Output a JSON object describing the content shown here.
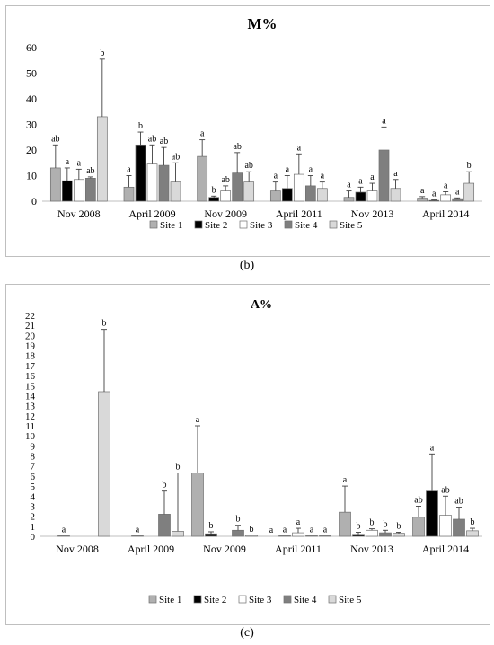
{
  "panel_labels": {
    "b": "(b)",
    "c": "(c)"
  },
  "colors": {
    "Site 1": "#b0b0b0",
    "Site 2": "#000000",
    "Site 3": "#ffffff",
    "Site 4": "#7f7f7f",
    "Site 5": "#d9d9d9"
  },
  "chart_data": [
    {
      "type": "bar",
      "title": "M%",
      "xlabel": "",
      "ylabel": "",
      "ylim": [
        0,
        60
      ],
      "yticks": [
        0,
        10,
        20,
        30,
        40,
        50,
        60
      ],
      "grid": false,
      "legend_position": "bottom",
      "categories": [
        "Nov 2008",
        "April 2009",
        "Nov 2009",
        "April 2011",
        "Nov 2013",
        "April 2014"
      ],
      "series": [
        {
          "name": "Site 1",
          "values": [
            13,
            5.5,
            17.5,
            4,
            1.5,
            1.2
          ],
          "errors": [
            9,
            4.5,
            6.5,
            3.5,
            2.5,
            0.6
          ],
          "labels": [
            "ab",
            "a",
            "a",
            "a",
            "a",
            "a"
          ]
        },
        {
          "name": "Site 2",
          "values": [
            8,
            22,
            1.5,
            5,
            3.5,
            0.3
          ],
          "errors": [
            5,
            5,
            0.5,
            5,
            2,
            0.2
          ],
          "labels": [
            "a",
            "b",
            "b",
            "a",
            "a",
            "a"
          ]
        },
        {
          "name": "Site 3",
          "values": [
            8.5,
            14.5,
            4,
            10.5,
            4,
            2.5
          ],
          "errors": [
            4,
            7.5,
            2,
            8,
            3,
            1.2
          ],
          "labels": [
            "a",
            "ab",
            "ab",
            "a",
            "a",
            "a"
          ]
        },
        {
          "name": "Site 4",
          "values": [
            9,
            14,
            11,
            6,
            20,
            1
          ],
          "errors": [
            0.5,
            7,
            8,
            4,
            9,
            0.3
          ],
          "labels": [
            "ab",
            "ab",
            "ab",
            "a",
            "a",
            "a"
          ]
        },
        {
          "name": "Site 5",
          "values": [
            33,
            7.5,
            7.5,
            5,
            5,
            7
          ],
          "errors": [
            22.5,
            7.5,
            4,
            2.5,
            3.5,
            4.5
          ],
          "labels": [
            "b",
            "ab",
            "ab",
            "a",
            "a",
            "b"
          ]
        }
      ]
    },
    {
      "type": "bar",
      "title": "A%",
      "xlabel": "",
      "ylabel": "",
      "ylim": [
        0,
        22
      ],
      "yticks": [
        0,
        1,
        2,
        3,
        4,
        5,
        6,
        7,
        8,
        9,
        10,
        11,
        12,
        13,
        14,
        15,
        16,
        17,
        18,
        19,
        20,
        21,
        22
      ],
      "grid": false,
      "legend_position": "bottom",
      "categories": [
        "Nov 2008",
        "April 2009",
        "Nov 2009",
        "April 2011",
        "Nov 2013",
        "April 2014"
      ],
      "series": [
        {
          "name": "Site 1",
          "values": [
            0,
            0,
            6.3,
            0,
            2.4,
            1.9
          ],
          "errors": [
            0,
            0,
            4.7,
            0,
            2.6,
            1.1
          ],
          "labels": [
            "",
            "",
            "a",
            "a",
            "a",
            "ab"
          ]
        },
        {
          "name": "Site 2",
          "values": [
            0.05,
            0.05,
            0.25,
            0.05,
            0.2,
            4.5
          ],
          "errors": [
            0,
            0,
            0.2,
            0,
            0.2,
            3.7
          ],
          "labels": [
            "a",
            "a",
            "b",
            "a",
            "b",
            "a"
          ]
        },
        {
          "name": "Site 3",
          "values": [
            0,
            0,
            0,
            0.35,
            0.6,
            2.1
          ],
          "errors": [
            0,
            0,
            0,
            0.45,
            0.15,
            1.9
          ],
          "labels": [
            "",
            "",
            "",
            "a",
            "b",
            "ab"
          ]
        },
        {
          "name": "Site 4",
          "values": [
            0,
            2.2,
            0.6,
            0.05,
            0.35,
            1.7
          ],
          "errors": [
            0,
            2.3,
            0.5,
            0,
            0.25,
            1.2
          ],
          "labels": [
            "",
            "b",
            "b",
            "a",
            "b",
            "ab"
          ]
        },
        {
          "name": "Site 5",
          "values": [
            14.4,
            0.5,
            0.1,
            0.05,
            0.3,
            0.55
          ],
          "errors": [
            6.2,
            5.8,
            0,
            0,
            0.1,
            0.25
          ],
          "labels": [
            "b",
            "b",
            "b",
            "a",
            "b",
            "b"
          ]
        }
      ]
    }
  ]
}
